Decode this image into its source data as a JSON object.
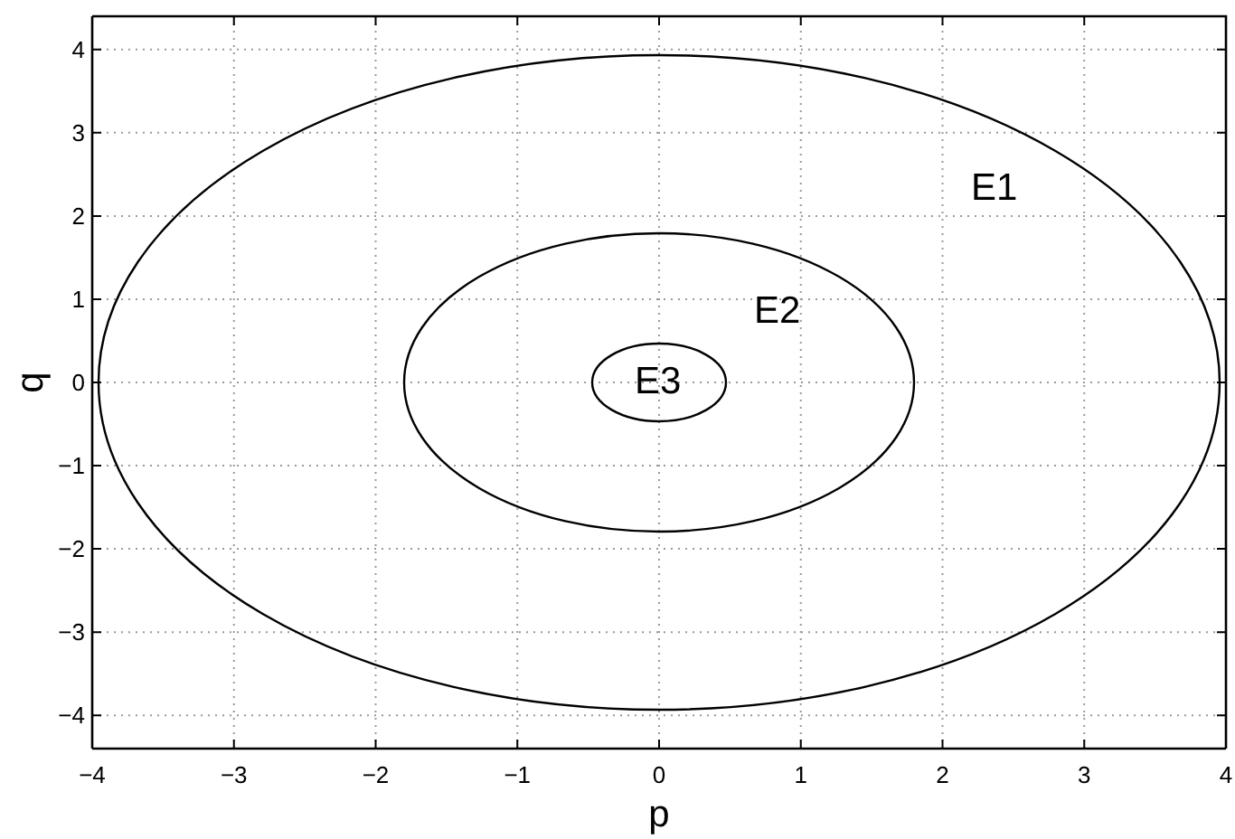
{
  "chart_data": {
    "type": "line",
    "xlabel": "p",
    "ylabel": "q",
    "xlim": [
      -4,
      4
    ],
    "xticks": [
      {
        "value": -4,
        "label": "−4"
      },
      {
        "value": -3,
        "label": "−3"
      },
      {
        "value": -2,
        "label": "−2"
      },
      {
        "value": -1,
        "label": "−1"
      },
      0,
      1,
      2,
      3,
      4
    ],
    "ylim": [
      -4.4,
      4.4
    ],
    "yticks": [
      {
        "value": -4,
        "label": "−4"
      },
      {
        "value": -3,
        "label": "−3"
      },
      {
        "value": -2,
        "label": "−2"
      },
      {
        "value": -1,
        "label": "−1"
      },
      0,
      1,
      2,
      3,
      4
    ],
    "grid": true,
    "annotations": [
      "E1",
      "E2",
      "E3"
    ]
  }
}
